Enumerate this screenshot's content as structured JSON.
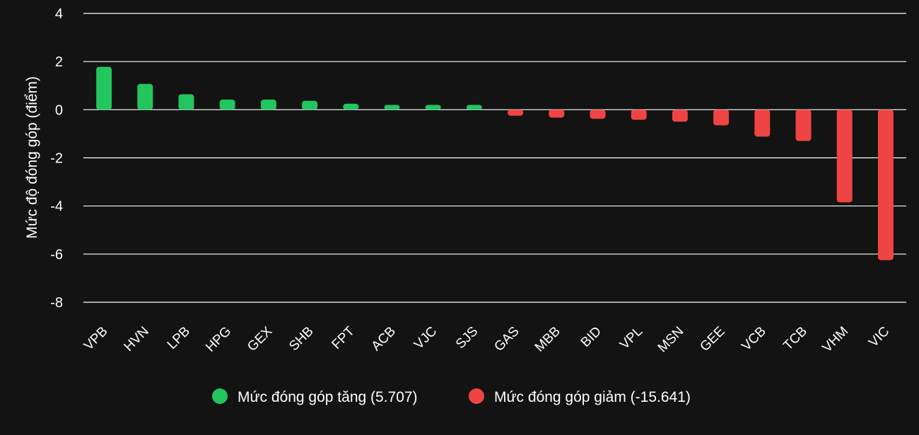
{
  "chart_data": {
    "type": "bar",
    "categories": [
      "VPB",
      "HVN",
      "LPB",
      "HPG",
      "GEX",
      "SHB",
      "FPT",
      "ACB",
      "VJC",
      "SJS",
      "GAS",
      "MBB",
      "BID",
      "VPL",
      "MSN",
      "GEE",
      "VCB",
      "TCB",
      "VHM",
      "VIC"
    ],
    "values": [
      1.78,
      1.07,
      0.64,
      0.42,
      0.42,
      0.37,
      0.25,
      0.2,
      0.2,
      0.2,
      -0.25,
      -0.33,
      -0.38,
      -0.42,
      -0.5,
      -0.65,
      -1.12,
      -1.3,
      -3.85,
      -6.25
    ],
    "series": [
      {
        "name": "Mức đóng góp tăng (5.707)",
        "color": "#22c55e"
      },
      {
        "name": "Mức đóng góp giảm (-15.641)",
        "color": "#ef4444"
      }
    ],
    "ylabel": "Mức độ đóng góp (điểm)",
    "xlabel": "",
    "ylim": [
      -8,
      4
    ],
    "yticks": [
      4,
      2,
      0,
      -2,
      -4,
      -6,
      -8
    ],
    "grid": true,
    "legend_position": "bottom"
  }
}
